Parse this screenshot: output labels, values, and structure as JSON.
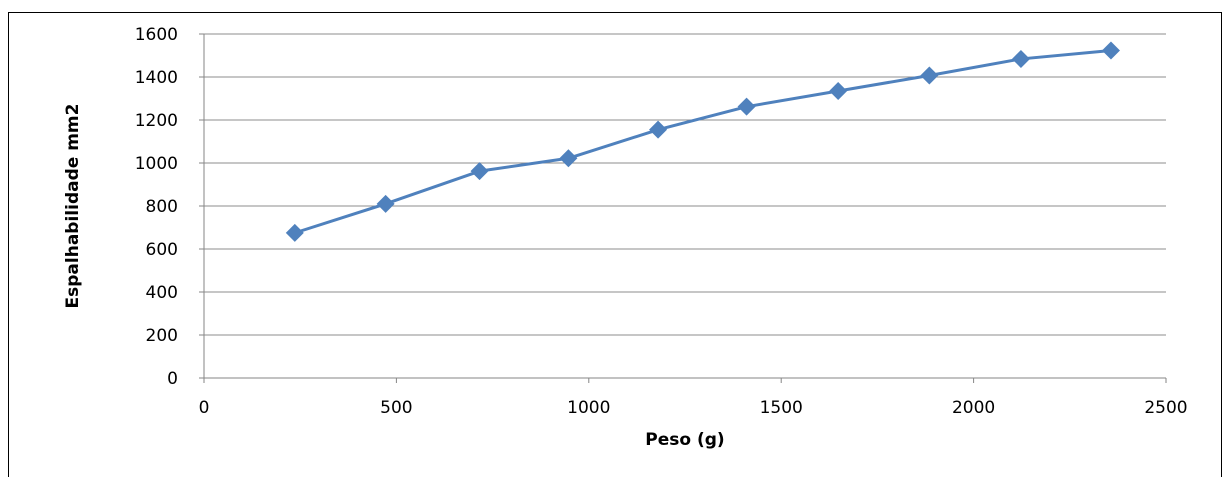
{
  "chart_data": {
    "type": "line",
    "title": "",
    "xlabel": "Peso (g)",
    "ylabel": "Espalhabilidade mm2",
    "xlim": [
      0,
      2500
    ],
    "ylim": [
      0,
      1600
    ],
    "x_ticks": [
      "0",
      "500",
      "1000",
      "1500",
      "2000",
      "2500"
    ],
    "y_ticks": [
      "0",
      "200",
      "400",
      "600",
      "800",
      "1000",
      "1200",
      "1400",
      "1600"
    ],
    "grid": "horizontal",
    "legend": "none",
    "series": [
      {
        "color": "#4f81bd",
        "marker": "diamond",
        "x": [
          236,
          472,
          716,
          947,
          1180,
          1410,
          1648,
          1885,
          2123,
          2357
        ],
        "y": [
          675,
          810,
          962,
          1022,
          1155,
          1262,
          1335,
          1407,
          1484,
          1523
        ]
      }
    ]
  }
}
